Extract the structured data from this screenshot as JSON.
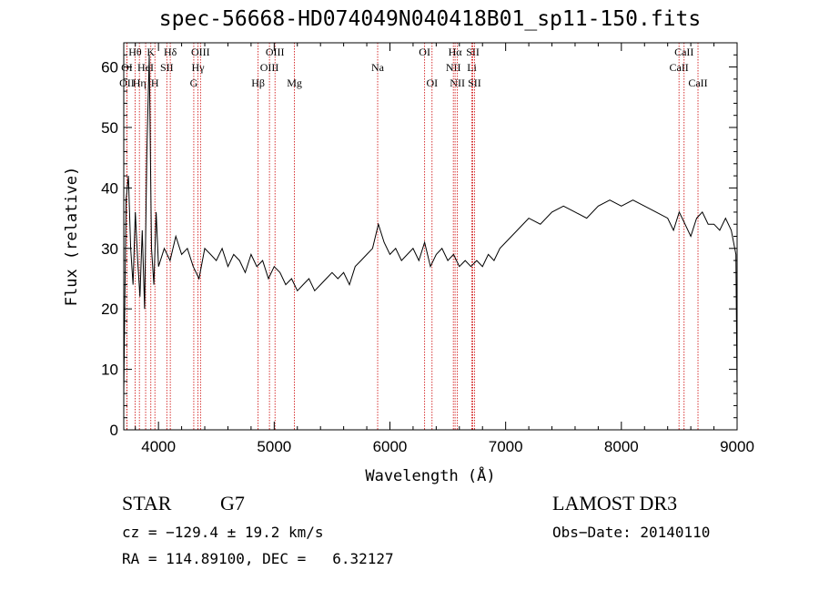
{
  "chart_data": {
    "type": "line",
    "title": "spec-56668-HD074049N040418B01_sp11-150.fits",
    "xlabel": "Wavelength (Å)",
    "ylabel": "Flux (relative)",
    "xlim": [
      3700,
      9000
    ],
    "ylim": [
      0,
      64
    ],
    "x_ticks": [
      4000,
      5000,
      6000,
      7000,
      8000,
      9000
    ],
    "y_ticks": [
      0,
      10,
      20,
      30,
      40,
      50,
      60
    ],
    "series": [
      {
        "x": [
          3700,
          3720,
          3740,
          3760,
          3780,
          3800,
          3820,
          3840,
          3860,
          3880,
          3900,
          3920,
          3940,
          3960,
          3980,
          4000,
          4050,
          4100,
          4150,
          4200,
          4250,
          4300,
          4350,
          4400,
          4450,
          4500,
          4550,
          4600,
          4650,
          4700,
          4750,
          4800,
          4850,
          4900,
          4950,
          5000,
          5050,
          5100,
          5150,
          5200,
          5250,
          5300,
          5350,
          5400,
          5450,
          5500,
          5550,
          5600,
          5650,
          5700,
          5750,
          5800,
          5850,
          5900,
          5950,
          6000,
          6050,
          6100,
          6150,
          6200,
          6250,
          6300,
          6350,
          6400,
          6450,
          6500,
          6550,
          6600,
          6650,
          6700,
          6750,
          6800,
          6850,
          6900,
          6950,
          7000,
          7100,
          7200,
          7300,
          7400,
          7500,
          7600,
          7700,
          7800,
          7900,
          8000,
          8100,
          8200,
          8300,
          8400,
          8450,
          8500,
          8550,
          8600,
          8650,
          8700,
          8750,
          8800,
          8850,
          8900,
          8950,
          8990,
          9000
        ],
        "y": [
          6,
          38,
          42,
          30,
          24,
          36,
          28,
          22,
          33,
          20,
          46,
          62,
          30,
          24,
          36,
          27,
          30,
          28,
          32,
          29,
          30,
          27,
          25,
          30,
          29,
          28,
          30,
          27,
          29,
          28,
          26,
          29,
          27,
          28,
          25,
          27,
          26,
          24,
          25,
          23,
          24,
          25,
          23,
          24,
          25,
          26,
          25,
          26,
          24,
          27,
          28,
          29,
          30,
          34,
          31,
          29,
          30,
          28,
          29,
          30,
          28,
          31,
          27,
          29,
          30,
          28,
          29,
          27,
          28,
          27,
          28,
          27,
          29,
          28,
          30,
          31,
          33,
          35,
          34,
          36,
          37,
          36,
          35,
          37,
          38,
          37,
          38,
          37,
          36,
          35,
          33,
          36,
          34,
          32,
          35,
          36,
          34,
          34,
          33,
          35,
          33,
          29,
          6
        ]
      }
    ],
    "lines": [
      {
        "label": "OII",
        "x": 3727,
        "row": 3
      },
      {
        "label": "OI",
        "x": 3727,
        "row": 2
      },
      {
        "label": "Hθ",
        "x": 3798,
        "row": 1
      },
      {
        "label": "Hη",
        "x": 3835,
        "row": 3
      },
      {
        "label": "HeI",
        "x": 3889,
        "row": 2
      },
      {
        "label": "K",
        "x": 3934,
        "row": 1
      },
      {
        "label": "H",
        "x": 3969,
        "row": 3
      },
      {
        "label": "SII",
        "x": 4072,
        "row": 2
      },
      {
        "label": "Hδ",
        "x": 4102,
        "row": 1
      },
      {
        "label": "G",
        "x": 4305,
        "row": 3
      },
      {
        "label": "Hγ",
        "x": 4341,
        "row": 2
      },
      {
        "label": "OIII",
        "x": 4363,
        "row": 1
      },
      {
        "label": "Hβ",
        "x": 4861,
        "row": 3
      },
      {
        "label": "OIII",
        "x": 4959,
        "row": 2
      },
      {
        "label": "OIII",
        "x": 5007,
        "row": 1
      },
      {
        "label": "Mg",
        "x": 5175,
        "row": 3
      },
      {
        "label": "Na",
        "x": 5894,
        "row": 2
      },
      {
        "label": "OI",
        "x": 6300,
        "row": 1
      },
      {
        "label": "OI",
        "x": 6364,
        "row": 3
      },
      {
        "label": "NII",
        "x": 6548,
        "row": 2
      },
      {
        "label": "NII",
        "x": 6583,
        "row": 3
      },
      {
        "label": "Hα",
        "x": 6563,
        "row": 1
      },
      {
        "label": "Li",
        "x": 6708,
        "row": 2
      },
      {
        "label": "SII",
        "x": 6716,
        "row": 1
      },
      {
        "label": "SII",
        "x": 6731,
        "row": 3
      },
      {
        "label": "CaII",
        "x": 8498,
        "row": 2
      },
      {
        "label": "CaII",
        "x": 8542,
        "row": 1
      },
      {
        "label": "CaII",
        "x": 8662,
        "row": 3
      }
    ],
    "grid": false,
    "line_color": "#000000",
    "marker_color": "#cc0000"
  },
  "info": {
    "class_label": "STAR",
    "subclass": "G7",
    "survey": "LAMOST DR3",
    "cz": "cz = −129.4 ± 19.2 km/s",
    "obs_date": "Obs−Date: 20140110",
    "coords": "RA = 114.89100, DEC =   6.32127"
  }
}
